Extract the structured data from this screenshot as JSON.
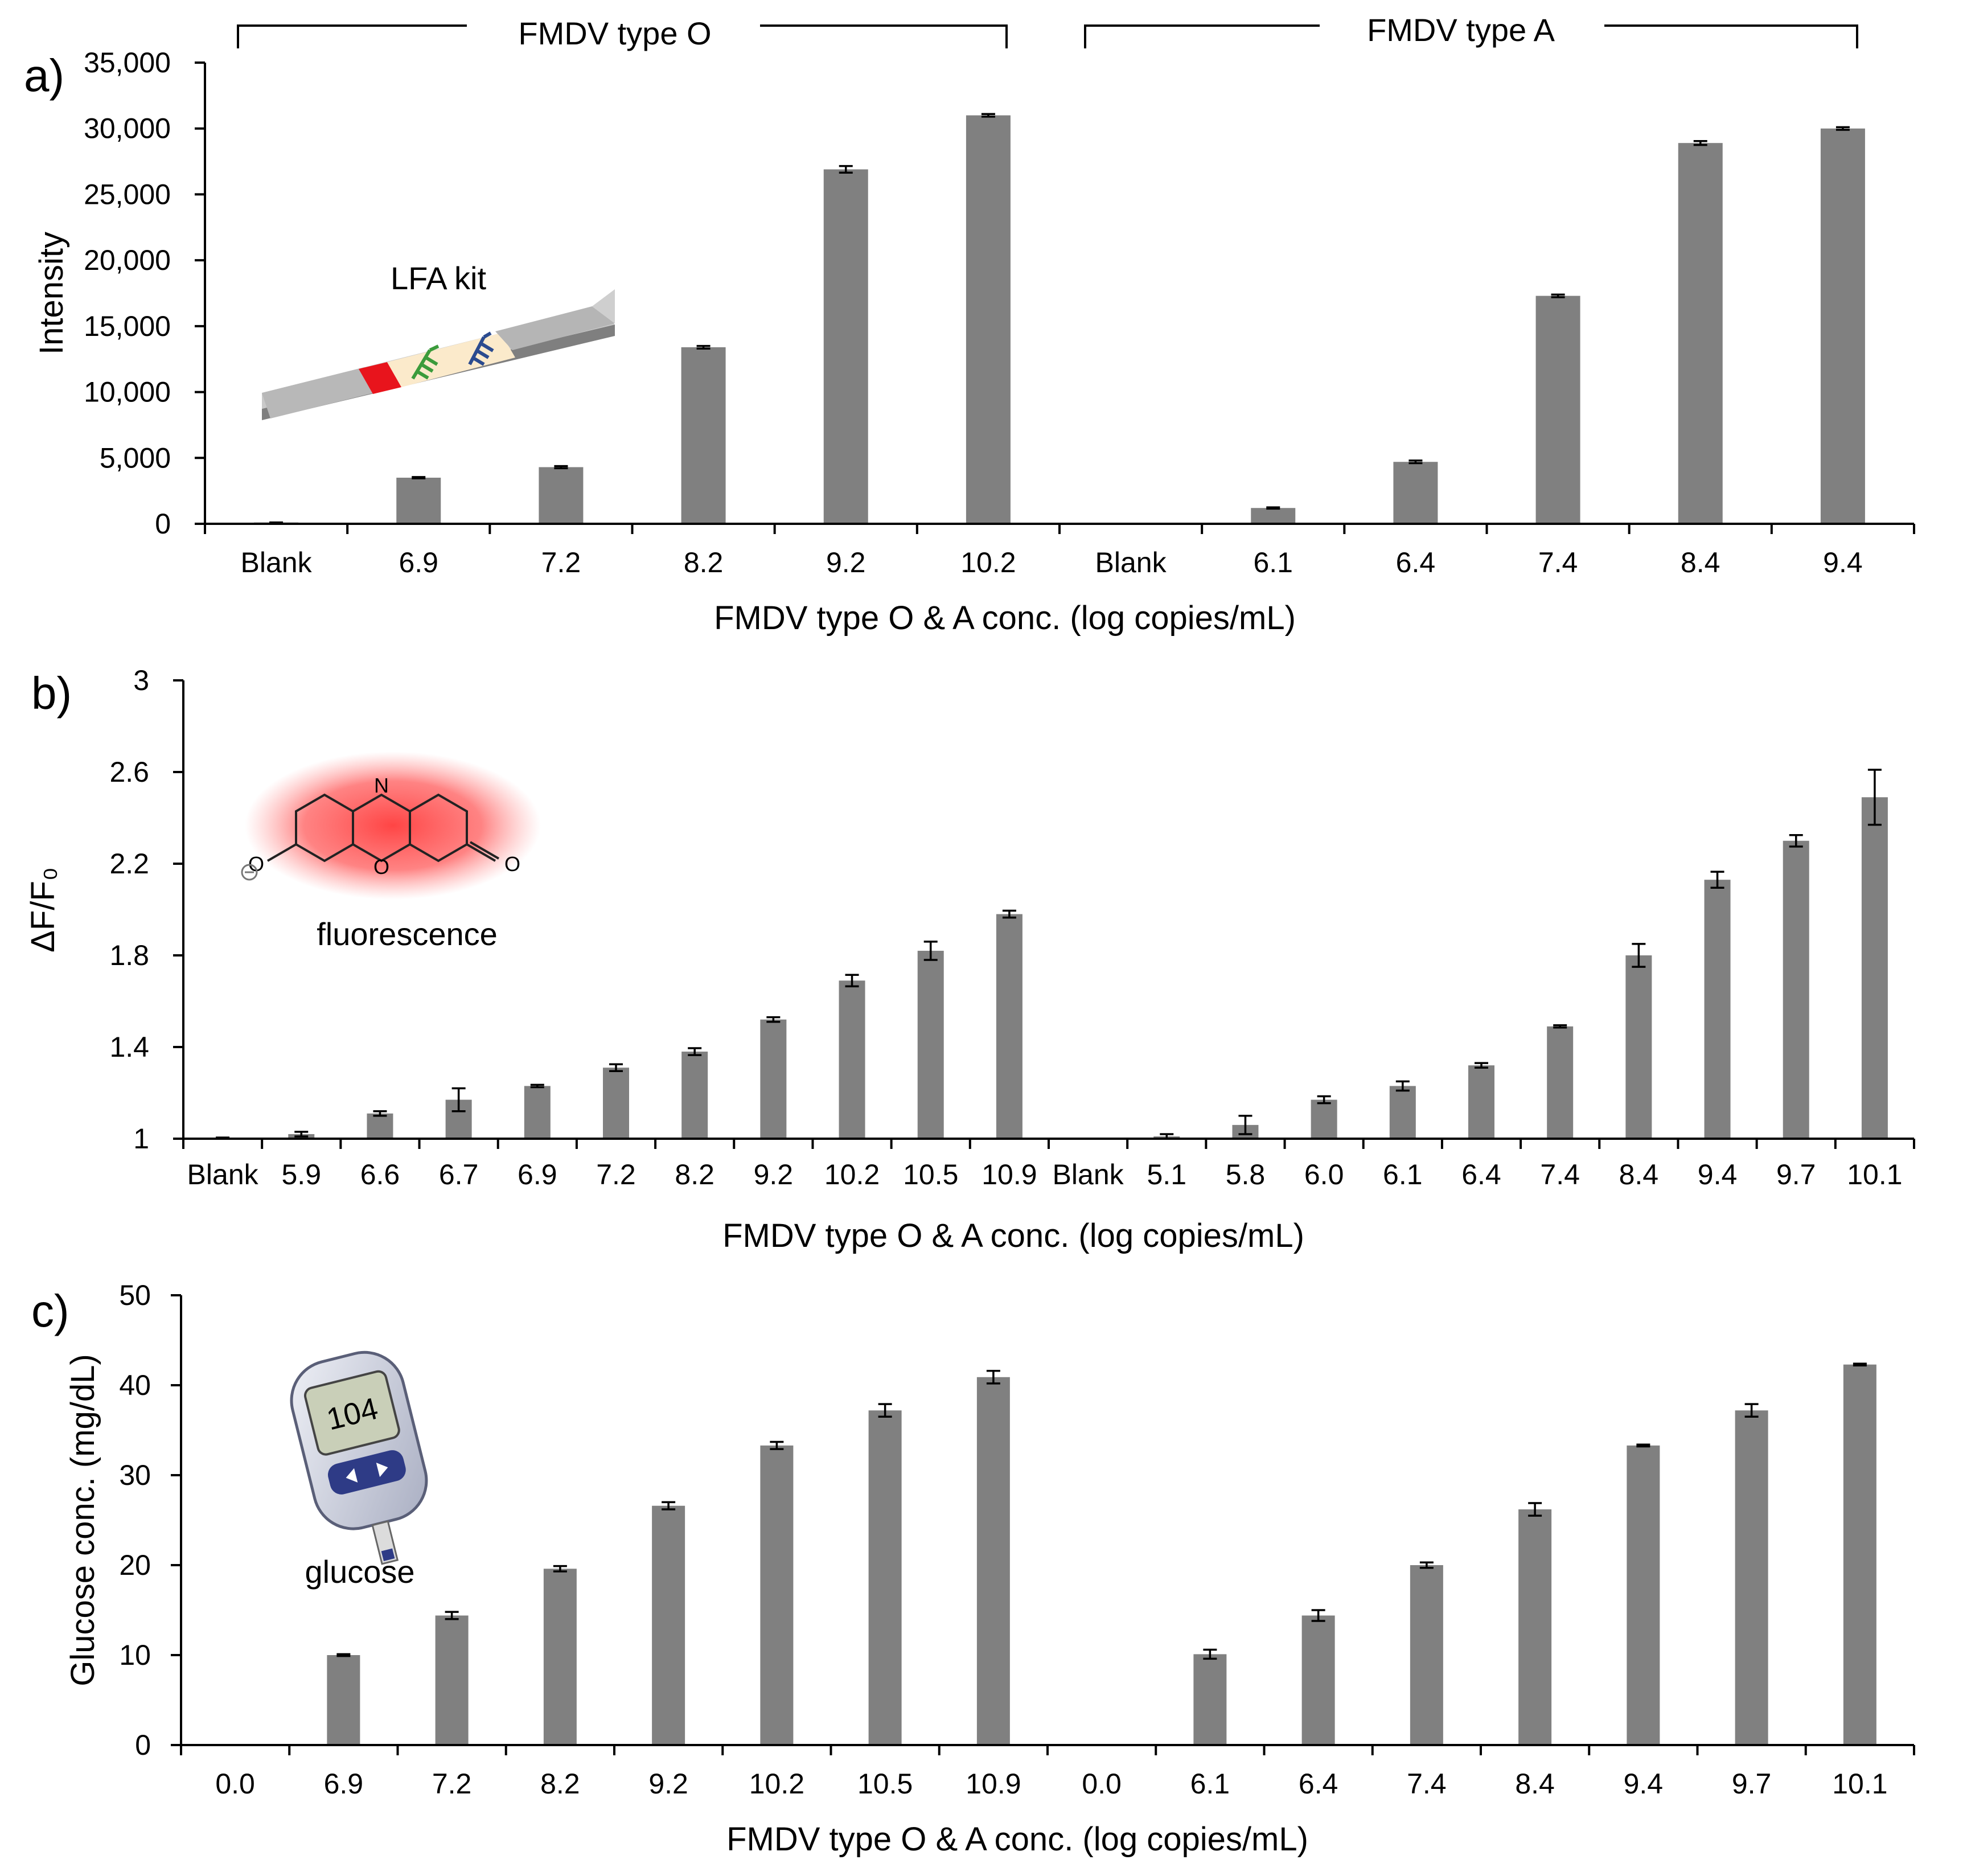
{
  "chart_data": [
    {
      "panel": "a)",
      "type": "bar",
      "title": "",
      "xlabel": "FMDV type O & A conc. (log copies/mL)",
      "ylabel": "Intensity",
      "ylim": [
        0,
        35000
      ],
      "yticks": [
        "0",
        "5,000",
        "10,000",
        "15,000",
        "20,000",
        "25,000",
        "30,000",
        "35,000"
      ],
      "ytick_values": [
        0,
        5000,
        10000,
        15000,
        20000,
        25000,
        30000,
        35000
      ],
      "categories": [
        "Blank",
        "6.9",
        "7.2",
        "8.2",
        "9.2",
        "10.2",
        "Blank",
        "6.1",
        "6.4",
        "7.4",
        "8.4",
        "9.4"
      ],
      "values": [
        100,
        3500,
        4300,
        13400,
        26900,
        31000,
        0,
        1200,
        4700,
        17300,
        28900,
        30000
      ],
      "errors": [
        0,
        50,
        80,
        100,
        250,
        100,
        0,
        50,
        100,
        100,
        150,
        100
      ],
      "groups": [
        {
          "label": "FMDV type O",
          "start": 0,
          "end": 5
        },
        {
          "label": "FMDV type A",
          "start": 6,
          "end": 11
        }
      ],
      "inset_label": "LFA kit"
    },
    {
      "panel": "b)",
      "type": "bar",
      "title": "",
      "xlabel": "FMDV type O & A conc. (log copies/mL)",
      "ylabel": "ΔF/F₀",
      "ylim": [
        1,
        3
      ],
      "yticks": [
        "1",
        "1.4",
        "1.8",
        "2.2",
        "2.6",
        "3"
      ],
      "ytick_values": [
        1,
        1.4,
        1.8,
        2.2,
        2.6,
        3
      ],
      "categories": [
        "Blank",
        "5.9",
        "6.6",
        "6.7",
        "6.9",
        "7.2",
        "8.2",
        "9.2",
        "10.2",
        "10.5",
        "10.9",
        "Blank",
        "5.1",
        "5.8",
        "6.0",
        "6.1",
        "6.4",
        "7.4",
        "8.4",
        "9.4",
        "9.7",
        "10.1"
      ],
      "values": [
        1.005,
        1.02,
        1.11,
        1.17,
        1.23,
        1.31,
        1.38,
        1.52,
        1.69,
        1.82,
        1.98,
        1.0,
        1.01,
        1.06,
        1.17,
        1.23,
        1.32,
        1.49,
        1.8,
        2.13,
        2.3,
        2.49
      ],
      "errors": [
        0,
        0.01,
        0.01,
        0.05,
        0.005,
        0.015,
        0.015,
        0.01,
        0.025,
        0.04,
        0.015,
        0,
        0.01,
        0.04,
        0.015,
        0.02,
        0.01,
        0.005,
        0.05,
        0.035,
        0.025,
        0.12
      ],
      "inset_label": "fluorescence"
    },
    {
      "panel": "c)",
      "type": "bar",
      "title": "",
      "xlabel": "FMDV type O & A conc. (log copies/mL)",
      "ylabel": "Glucose conc. (mg/dL)",
      "ylim": [
        0,
        50
      ],
      "yticks": [
        "0",
        "10",
        "20",
        "30",
        "40",
        "50"
      ],
      "ytick_values": [
        0,
        10,
        20,
        30,
        40,
        50
      ],
      "categories": [
        "0.0",
        "6.9",
        "7.2",
        "8.2",
        "9.2",
        "10.2",
        "10.5",
        "10.9",
        "0.0",
        "6.1",
        "6.4",
        "7.4",
        "8.4",
        "9.4",
        "9.7",
        "10.1"
      ],
      "values": [
        0,
        10.0,
        14.4,
        19.6,
        26.6,
        33.3,
        37.2,
        40.9,
        0,
        10.1,
        14.4,
        20.0,
        26.2,
        33.3,
        37.2,
        42.3
      ],
      "errors": [
        0,
        0.1,
        0.4,
        0.3,
        0.4,
        0.4,
        0.7,
        0.7,
        0,
        0.5,
        0.6,
        0.3,
        0.7,
        0.1,
        0.7,
        0.1
      ],
      "inset_label": "glucose",
      "meter_reading": "104"
    }
  ],
  "colors": {
    "bar": "#808080",
    "axis": "#000000",
    "lfa_red": "#e8141c",
    "lfa_pad": "#fbeacb",
    "antibody_green": "#3b9b3b",
    "antibody_blue": "#2b4b8f",
    "fluor_glow": "#ff4d4d",
    "meter_body": "#d8dbe6"
  }
}
